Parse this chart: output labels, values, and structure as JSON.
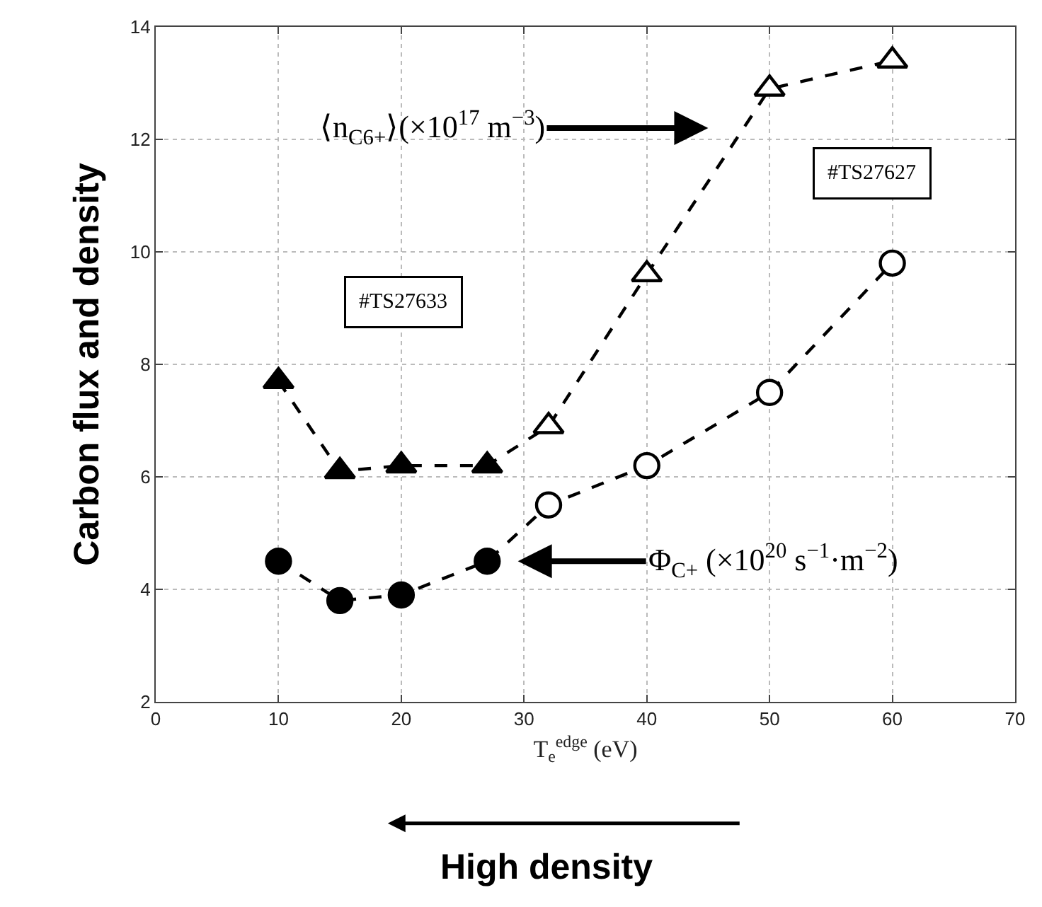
{
  "chart_data": {
    "type": "line",
    "xlabel": "T$_{e}$$^{edge}$ (eV)",
    "ylabel": "Carbon flux and density",
    "xlim": [
      0,
      70
    ],
    "xticks": [
      0,
      10,
      20,
      30,
      40,
      50,
      60,
      70
    ],
    "ylim": [
      2,
      14
    ],
    "yticks": [
      2,
      4,
      6,
      8,
      10,
      12,
      14
    ],
    "grid": true,
    "line_style": "dashed",
    "series": [
      {
        "x": [
          10,
          15,
          20,
          27,
          32,
          40,
          50,
          60
        ],
        "values": [
          7.7,
          6.1,
          6.2,
          6.2,
          6.9,
          9.6,
          12.9,
          13.4
        ],
        "color": "#000000",
        "colors": [
          "#000000",
          "#000000",
          "#000000",
          "#000000",
          "#ffffff",
          "#ffffff",
          "#ffffff",
          "#ffffff"
        ],
        "marker": "triangle"
      },
      {
        "x": [
          10,
          15,
          20,
          27,
          32,
          40,
          50,
          60
        ],
        "values": [
          4.5,
          3.8,
          3.9,
          4.5,
          5.5,
          6.2,
          7.5,
          9.8
        ],
        "color": "#000000",
        "colors": [
          "#000000",
          "#000000",
          "#000000",
          "#000000",
          "#ffffff",
          "#ffffff",
          "#ffffff",
          "#ffffff"
        ],
        "marker": "circle"
      }
    ],
    "annotations": [
      "⟨n$_{C6+}$⟩(×10$^{17}$ m$^{−3}$)",
      "Φ$_{C+}$ (×10$^{20}$ s$^{−1}$·m$^{−2}$)",
      "#TS27633",
      "#TS27627",
      "High density"
    ]
  }
}
